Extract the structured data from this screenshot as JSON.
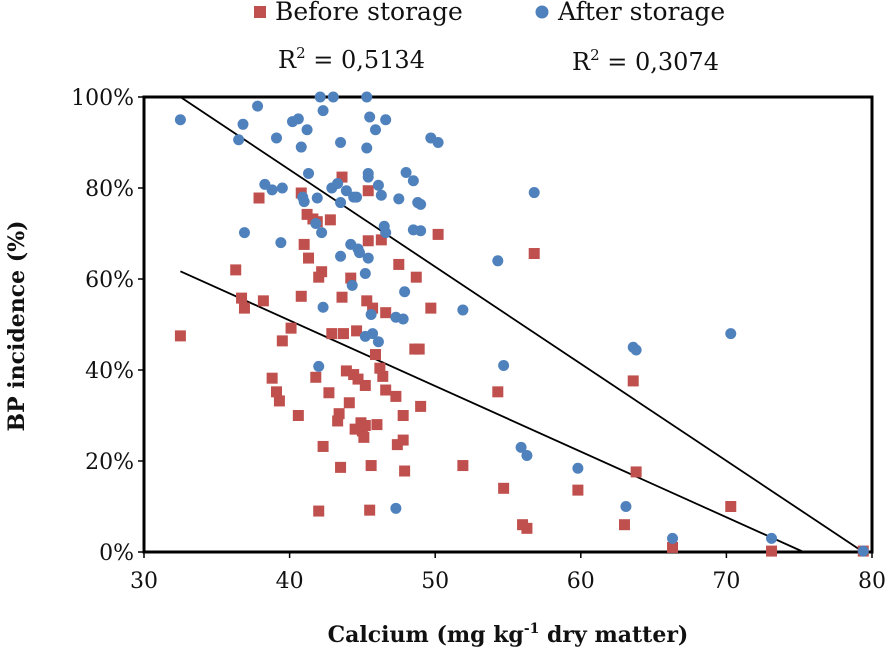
{
  "chart_data": {
    "type": "scatter",
    "title": "",
    "xlabel_main": "Calcium (mg kg",
    "xlabel_sup": "-1",
    "xlabel_tail": " dry matter)",
    "ylabel": "BP incidence (%)",
    "xlim": [
      30,
      80
    ],
    "ylim": [
      0,
      100
    ],
    "x_ticks": [
      "30",
      "40",
      "50",
      "60",
      "70",
      "80"
    ],
    "y_ticks": [
      "0%",
      "20%",
      "40%",
      "60%",
      "80%",
      "100%"
    ],
    "legend_position": "top",
    "series": [
      {
        "name": "Before storage",
        "marker": "square",
        "color": "#c0504d",
        "r2_label": "R",
        "r2_sup": "2",
        "r2_value": " = 0,5134",
        "trendline": {
          "x0": 32.5,
          "y0": 61.7,
          "x1": 75.3,
          "y1": 0
        },
        "points": [
          [
            32.5,
            47.5
          ],
          [
            36.3,
            62.0
          ],
          [
            36.7,
            55.8
          ],
          [
            36.9,
            53.6
          ],
          [
            37.9,
            77.8
          ],
          [
            38.2,
            55.2
          ],
          [
            38.8,
            38.2
          ],
          [
            39.1,
            35.2
          ],
          [
            39.3,
            33.2
          ],
          [
            39.5,
            46.4
          ],
          [
            40.1,
            49.2
          ],
          [
            40.6,
            30.0
          ],
          [
            40.8,
            78.9
          ],
          [
            40.8,
            56.2
          ],
          [
            41.0,
            67.6
          ],
          [
            41.2,
            74.2
          ],
          [
            41.3,
            64.6
          ],
          [
            41.6,
            73.2
          ],
          [
            41.8,
            38.4
          ],
          [
            41.9,
            72.6
          ],
          [
            42.0,
            9.0
          ],
          [
            42.0,
            60.4
          ],
          [
            42.2,
            61.6
          ],
          [
            42.3,
            23.2
          ],
          [
            42.7,
            35.0
          ],
          [
            42.8,
            73.0
          ],
          [
            42.9,
            48.0
          ],
          [
            43.3,
            28.8
          ],
          [
            43.4,
            30.4
          ],
          [
            43.5,
            18.6
          ],
          [
            43.6,
            82.4
          ],
          [
            43.6,
            56.0
          ],
          [
            43.7,
            48.0
          ],
          [
            43.9,
            39.8
          ],
          [
            44.1,
            32.8
          ],
          [
            44.2,
            60.2
          ],
          [
            44.4,
            39.0
          ],
          [
            44.5,
            27.0
          ],
          [
            44.6,
            48.6
          ],
          [
            44.7,
            38.0
          ],
          [
            44.9,
            28.4
          ],
          [
            45.0,
            26.6
          ],
          [
            45.1,
            25.2
          ],
          [
            45.2,
            36.6
          ],
          [
            45.2,
            27.8
          ],
          [
            45.3,
            55.2
          ],
          [
            45.4,
            79.4
          ],
          [
            45.4,
            68.4
          ],
          [
            45.5,
            9.2
          ],
          [
            45.6,
            19.0
          ],
          [
            45.7,
            53.6
          ],
          [
            45.9,
            43.4
          ],
          [
            46.0,
            28.0
          ],
          [
            46.2,
            40.4
          ],
          [
            46.3,
            68.6
          ],
          [
            46.4,
            38.6
          ],
          [
            46.6,
            35.6
          ],
          [
            46.6,
            52.6
          ],
          [
            47.3,
            34.2
          ],
          [
            47.4,
            23.6
          ],
          [
            47.5,
            63.2
          ],
          [
            47.8,
            24.6
          ],
          [
            47.8,
            30.0
          ],
          [
            47.9,
            17.8
          ],
          [
            48.6,
            44.6
          ],
          [
            48.7,
            60.4
          ],
          [
            48.9,
            44.6
          ],
          [
            49.0,
            32.0
          ],
          [
            49.7,
            53.6
          ],
          [
            50.2,
            69.8
          ],
          [
            51.9,
            19.0
          ],
          [
            54.3,
            35.2
          ],
          [
            54.7,
            14.0
          ],
          [
            56.0,
            6.0
          ],
          [
            56.3,
            5.2
          ],
          [
            56.8,
            65.6
          ],
          [
            59.8,
            13.6
          ],
          [
            63.0,
            6.0
          ],
          [
            63.6,
            37.6
          ],
          [
            63.8,
            17.6
          ],
          [
            66.3,
            1.0
          ],
          [
            70.3,
            10.0
          ],
          [
            73.1,
            0.2
          ],
          [
            79.4,
            0.2
          ]
        ]
      },
      {
        "name": "After storage",
        "marker": "circle",
        "color": "#4f81bd",
        "r2_label": "R",
        "r2_sup": "2",
        "r2_value": " = 0,3074",
        "trendline": {
          "x0": 32.5,
          "y0": 100.0,
          "x1": 79.4,
          "y1": 0
        },
        "points": [
          [
            32.5,
            95.0
          ],
          [
            36.5,
            90.6
          ],
          [
            36.8,
            94.0
          ],
          [
            36.9,
            70.2
          ],
          [
            37.8,
            98.0
          ],
          [
            38.3,
            80.8
          ],
          [
            38.8,
            79.6
          ],
          [
            39.1,
            91.0
          ],
          [
            39.4,
            68.0
          ],
          [
            39.5,
            80.0
          ],
          [
            40.2,
            94.6
          ],
          [
            40.6,
            95.2
          ],
          [
            40.8,
            89.0
          ],
          [
            40.9,
            78.0
          ],
          [
            41.0,
            77.0
          ],
          [
            41.2,
            92.8
          ],
          [
            41.3,
            83.2
          ],
          [
            41.8,
            72.2
          ],
          [
            41.9,
            77.8
          ],
          [
            42.0,
            40.8
          ],
          [
            42.1,
            100.0
          ],
          [
            42.2,
            70.2
          ],
          [
            42.3,
            97.0
          ],
          [
            42.3,
            53.8
          ],
          [
            42.9,
            80.0
          ],
          [
            43.0,
            100.0
          ],
          [
            43.3,
            81.0
          ],
          [
            43.5,
            76.8
          ],
          [
            43.5,
            90.0
          ],
          [
            43.5,
            65.0
          ],
          [
            43.9,
            79.4
          ],
          [
            44.2,
            67.6
          ],
          [
            44.3,
            58.6
          ],
          [
            44.4,
            78.0
          ],
          [
            44.6,
            78.0
          ],
          [
            44.7,
            66.6
          ],
          [
            44.8,
            65.8
          ],
          [
            45.2,
            47.4
          ],
          [
            45.2,
            61.2
          ],
          [
            45.3,
            88.8
          ],
          [
            45.3,
            100.0
          ],
          [
            45.4,
            83.2
          ],
          [
            45.4,
            82.4
          ],
          [
            45.4,
            64.6
          ],
          [
            45.5,
            95.6
          ],
          [
            45.6,
            52.2
          ],
          [
            45.7,
            48.0
          ],
          [
            45.9,
            92.8
          ],
          [
            46.1,
            80.6
          ],
          [
            46.1,
            46.2
          ],
          [
            46.3,
            78.4
          ],
          [
            46.5,
            71.6
          ],
          [
            46.6,
            95.0
          ],
          [
            46.6,
            70.2
          ],
          [
            47.3,
            9.6
          ],
          [
            47.3,
            51.6
          ],
          [
            47.5,
            77.6
          ],
          [
            47.8,
            51.2
          ],
          [
            47.9,
            57.2
          ],
          [
            48.0,
            83.4
          ],
          [
            48.5,
            70.8
          ],
          [
            48.5,
            81.6
          ],
          [
            48.8,
            76.8
          ],
          [
            49.0,
            76.4
          ],
          [
            49.0,
            70.6
          ],
          [
            49.7,
            91.0
          ],
          [
            50.2,
            90.0
          ],
          [
            51.9,
            53.2
          ],
          [
            54.3,
            64.0
          ],
          [
            54.7,
            41.0
          ],
          [
            55.9,
            23.0
          ],
          [
            56.3,
            21.2
          ],
          [
            56.8,
            79.0
          ],
          [
            59.8,
            18.4
          ],
          [
            63.1,
            10.0
          ],
          [
            63.6,
            45.0
          ],
          [
            63.8,
            44.4
          ],
          [
            66.3,
            3.0
          ],
          [
            70.3,
            48.0
          ],
          [
            73.1,
            3.0
          ],
          [
            79.4,
            0.2
          ]
        ]
      }
    ]
  }
}
